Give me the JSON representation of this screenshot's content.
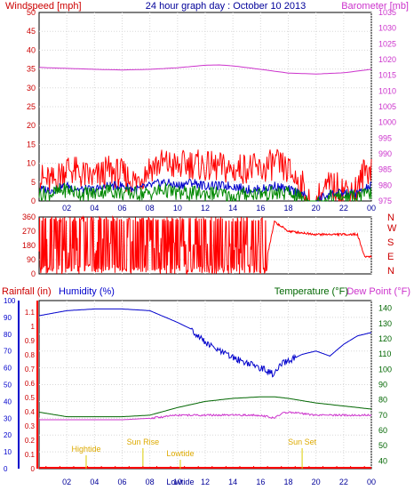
{
  "chart_data": [
    {
      "type": "line",
      "panel": "wind",
      "title": "24 hour graph day : October 10 2013",
      "y_left_label": "Windspeed [mph]",
      "y_right_label": "Barometer [mb]",
      "y_left_ticks": [
        "50",
        "45",
        "40",
        "35",
        "30",
        "25",
        "20",
        "15",
        "10",
        "5",
        "0"
      ],
      "y_right_ticks": [
        "1035",
        "1030",
        "1025",
        "1020",
        "1015",
        "1010",
        "1005",
        "1000",
        "995",
        "990",
        "985",
        "980",
        "975"
      ],
      "x_ticks": [
        "02",
        "04",
        "06",
        "08",
        "10",
        "12",
        "14",
        "16",
        "18",
        "20",
        "22",
        "00"
      ],
      "ylim_left": [
        0,
        50
      ],
      "ylim_right": [
        975,
        1035
      ],
      "grid": true,
      "series": [
        {
          "key": "barometer",
          "color": "#cc33cc",
          "axis": "right",
          "x": [
            0,
            2,
            4,
            6,
            8,
            10,
            12,
            13,
            14,
            16,
            18,
            20,
            22,
            24
          ],
          "values": [
            1017.5,
            1017.2,
            1016.9,
            1016.7,
            1016.9,
            1017.4,
            1018.2,
            1018.3,
            1018.0,
            1016.9,
            1015.7,
            1015.4,
            1015.8,
            1016.9
          ]
        },
        {
          "key": "gust",
          "color": "#ff0000",
          "axis": "left",
          "x": [
            0,
            1,
            2,
            3,
            4,
            5,
            6,
            7,
            8,
            9,
            10,
            11,
            12,
            13,
            14,
            15,
            16,
            17,
            18,
            19,
            19.5,
            20,
            21,
            22,
            23,
            23.5,
            24
          ],
          "values": [
            6,
            5,
            9,
            7,
            6,
            8,
            7,
            5,
            9,
            10,
            9,
            10,
            9,
            9,
            8,
            9,
            8,
            10,
            8,
            4,
            0,
            0,
            4,
            3,
            3,
            8,
            9
          ]
        },
        {
          "key": "average",
          "color": "#0000cc",
          "axis": "left",
          "x": [
            0,
            1,
            2,
            3,
            4,
            5,
            6,
            7,
            8,
            9,
            10,
            11,
            12,
            13,
            14,
            15,
            16,
            17,
            18,
            19,
            19.5,
            20,
            21,
            22,
            23,
            24
          ],
          "values": [
            3,
            3,
            4,
            3,
            3,
            4,
            4,
            3,
            4,
            5,
            4,
            5,
            4,
            4,
            4,
            3,
            3,
            4,
            3,
            2,
            0,
            0,
            2,
            2,
            2,
            4
          ]
        },
        {
          "key": "wind",
          "color": "#008800",
          "axis": "left",
          "x": [
            0,
            1,
            2,
            3,
            4,
            5,
            6,
            7,
            8,
            9,
            10,
            11,
            12,
            13,
            14,
            15,
            16,
            17,
            18,
            19,
            19.5,
            20,
            21,
            22,
            23,
            24
          ],
          "values": [
            2,
            2,
            3,
            2,
            2,
            3,
            2,
            2,
            2,
            3,
            2,
            2,
            2,
            2,
            1,
            2,
            2,
            2,
            2,
            1,
            0,
            0,
            1,
            1,
            1,
            2
          ]
        }
      ]
    },
    {
      "type": "line",
      "panel": "direction",
      "y_left_ticks": [
        "360",
        "270",
        "180",
        "90",
        "0"
      ],
      "y_right_ticks": [
        "N",
        "W",
        "S",
        "E",
        "N"
      ],
      "ylim": [
        0,
        360
      ],
      "series": [
        {
          "key": "direction",
          "color": "#ff0000",
          "x": [
            0,
            1,
            2,
            4,
            6,
            8,
            10,
            12,
            14,
            16,
            16.5,
            17,
            17.5,
            18,
            20,
            22,
            23,
            23.5,
            24
          ],
          "values": [
            60,
            300,
            40,
            330,
            20,
            340,
            30,
            300,
            50,
            320,
            120,
            330,
            300,
            270,
            250,
            250,
            250,
            110,
            110
          ]
        }
      ]
    },
    {
      "type": "line",
      "panel": "climate",
      "labels": {
        "rainfall": "Rainfall (in)",
        "humidity": "Humidity (%)",
        "temperature": "Temperature (°F)",
        "dewpoint": "Dew Point (°F)"
      },
      "y_left_ticks": [
        "100",
        "90",
        "80",
        "70",
        "60",
        "50",
        "40",
        "30",
        "20",
        "10",
        "0"
      ],
      "y_rain_ticks": [
        "1.1",
        "1",
        "0.9",
        "0.8",
        "0.7",
        "0.6",
        "0.5",
        "0.4",
        "0.3",
        "0.2",
        "0.1",
        "0"
      ],
      "y_right_ticks": [
        "140",
        "130",
        "120",
        "110",
        "100",
        "90",
        "80",
        "70",
        "60",
        "50",
        "40"
      ],
      "x_ticks": [
        "02",
        "04",
        "06",
        "08",
        "10",
        "12",
        "14",
        "16",
        "18",
        "20",
        "22",
        "00"
      ],
      "ylim_left": [
        0,
        100
      ],
      "ylim_right": [
        35,
        145
      ],
      "grid": true,
      "series": [
        {
          "key": "humidity",
          "color": "#0000cc",
          "axis": "left",
          "x": [
            0,
            2,
            4,
            6,
            8,
            10,
            11,
            12,
            13,
            14,
            15,
            16,
            17,
            17.5,
            18,
            19,
            20,
            21,
            22,
            23,
            24
          ],
          "values": [
            91,
            94,
            95,
            95,
            94,
            87,
            83,
            75,
            70,
            66,
            63,
            60,
            56,
            62,
            64,
            68,
            70,
            67,
            74,
            79,
            81
          ]
        },
        {
          "key": "temperature",
          "color": "#006600",
          "axis": "right",
          "x": [
            0,
            2,
            4,
            6,
            8,
            10,
            12,
            14,
            16,
            17,
            18,
            20,
            22,
            24
          ],
          "values": [
            72,
            69,
            69,
            69,
            70,
            75,
            79,
            81,
            82,
            82,
            81,
            78,
            76,
            74
          ]
        },
        {
          "key": "dewpoint",
          "color": "#cc33cc",
          "axis": "right",
          "x": [
            0,
            2,
            4,
            6,
            8,
            10,
            12,
            14,
            16,
            17,
            17.5,
            18,
            20,
            22,
            24
          ],
          "values": [
            67,
            67,
            67,
            67,
            68,
            70,
            70,
            70,
            70,
            68,
            71,
            72,
            70,
            70,
            70
          ]
        },
        {
          "key": "rainfall",
          "color": "#ff0000",
          "axis": "rain",
          "x": [
            0,
            24
          ],
          "values": [
            0,
            0
          ]
        }
      ],
      "annotations": [
        {
          "text": "Hightide",
          "x": 3.4,
          "level": "mid"
        },
        {
          "text": "Sun Rise",
          "x": 7.5,
          "level": "high"
        },
        {
          "text": "Lowtide",
          "x": 10.2,
          "level": "low"
        },
        {
          "text": "Sun Set",
          "x": 19.0,
          "level": "high"
        }
      ],
      "bottom_marker": "Lowtide"
    }
  ]
}
